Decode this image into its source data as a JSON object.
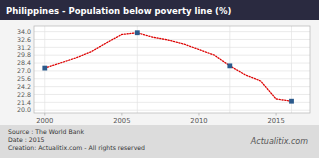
{
  "chart_data": {
    "type": "line",
    "title": "Philippines - Population below poverty line (%)",
    "x": [
      2000,
      2001,
      2002,
      2003,
      2004,
      2005,
      2006,
      2007,
      2008,
      2009,
      2010,
      2011,
      2012,
      2013,
      2014,
      2015,
      2016
    ],
    "series": [
      {
        "type": "line",
        "line_style": "dotted",
        "color": "#dd0000",
        "values": [
          27.5,
          28.4,
          29.3,
          30.4,
          32.0,
          33.5,
          33.8,
          33.0,
          32.5,
          31.8,
          30.8,
          29.8,
          27.9,
          26.3,
          25.2,
          22.0,
          21.6
        ]
      },
      {
        "type": "scatter",
        "marker": "square",
        "color": "#2b5a8c",
        "x": [
          2000,
          2006,
          2012,
          2016
        ],
        "values": [
          27.5,
          33.8,
          27.9,
          21.6
        ]
      }
    ],
    "xlim": [
      1999.3,
      2017.2
    ],
    "xticks": [
      2000,
      2005,
      2010,
      2015
    ],
    "ylim": [
      19.5,
      35.0
    ],
    "yticks": [
      {
        "value": 20.0,
        "label": "20.0"
      },
      21.4,
      22.8,
      24.2,
      25.6,
      {
        "value": 27.0,
        "label": "27.0"
      },
      28.4,
      29.8,
      31.2,
      32.6,
      {
        "value": 34.0,
        "label": "34.0"
      }
    ],
    "grid": true,
    "annotations": [
      "Source : The World Bank",
      "Date : 2015",
      "Creation: Actualitix.com - All rights reserved",
      "Actualitix.com"
    ]
  }
}
